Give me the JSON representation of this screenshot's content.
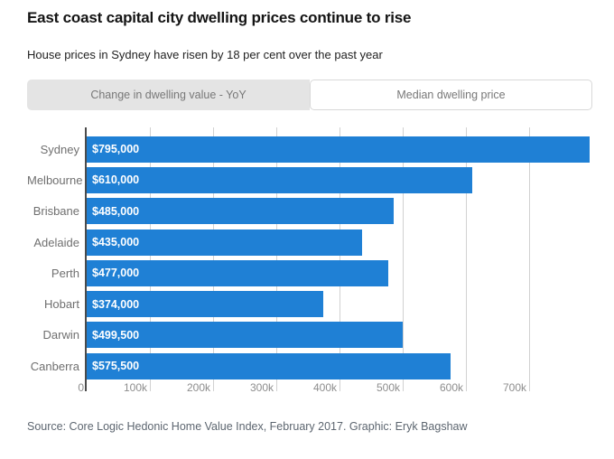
{
  "header": {
    "title": "East coast capital city dwelling prices continue to rise",
    "subtitle": "House prices in Sydney have risen by 18 per cent over the past year"
  },
  "tabs": [
    {
      "label": "Change in dwelling value - YoY",
      "active": false
    },
    {
      "label": "Median dwelling price",
      "active": true
    }
  ],
  "chart_data": {
    "type": "bar",
    "orientation": "horizontal",
    "categories": [
      "Sydney",
      "Melbourne",
      "Brisbane",
      "Adelaide",
      "Perth",
      "Hobart",
      "Darwin",
      "Canberra"
    ],
    "values": [
      795000,
      610000,
      485000,
      435000,
      477000,
      374000,
      499500,
      575500
    ],
    "value_labels": [
      "$795,000",
      "$610,000",
      "$485,000",
      "$435,000",
      "$477,000",
      "$374,000",
      "$499,500",
      "$575,500"
    ],
    "x_axis": {
      "max": 800000,
      "tick_values": [
        0,
        100000,
        200000,
        300000,
        400000,
        500000,
        600000,
        700000
      ],
      "tick_labels": [
        "0",
        "100k",
        "200k",
        "300k",
        "400k",
        "500k",
        "600k",
        "700k"
      ]
    },
    "grid": true,
    "legend": "none"
  },
  "colors": {
    "bar_blue": "#1f80d5",
    "gridline": "#d1d1d1",
    "axis_line": "#4b4b4b"
  },
  "footer": {
    "source": "Source: Core Logic Hedonic Home Value Index, February 2017. Graphic: Eryk Bagshaw"
  }
}
